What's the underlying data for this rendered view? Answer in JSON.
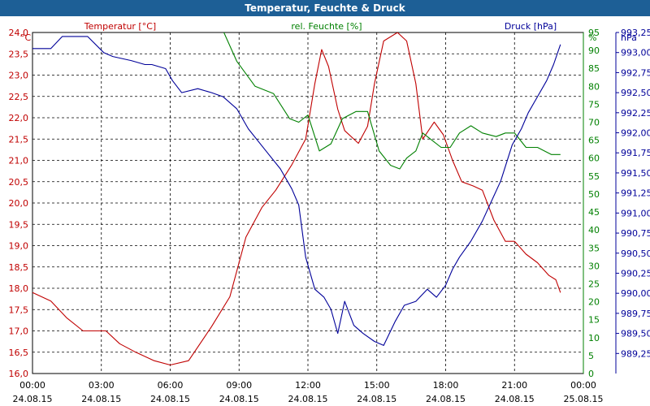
{
  "title": "Temperatur, Feuchte & Druck",
  "chart_data": {
    "type": "line",
    "x": [
      "00:00",
      "03:00",
      "06:00",
      "09:00",
      "12:00",
      "15:00",
      "18:00",
      "21:00",
      "00:00"
    ],
    "x_dates": [
      "24.08.15",
      "24.08.15",
      "24.08.15",
      "24.08.15",
      "24.08.15",
      "24.08.15",
      "24.08.15",
      "24.08.15",
      "25.08.15"
    ],
    "grid": true,
    "axes": {
      "temp": {
        "label": "Temperatur [°C]",
        "unit": "°C",
        "min": 16.0,
        "max": 24.0,
        "step": 0.5,
        "color": "#c00000",
        "ticks": [
          "16,0",
          "16,5",
          "17,0",
          "17,5",
          "18,0",
          "18,5",
          "19,0",
          "19,5",
          "20,0",
          "20,5",
          "21,0",
          "21,5",
          "22,0",
          "22,5",
          "23,0",
          "23,5",
          "24,0"
        ]
      },
      "hum": {
        "label": "rel. Feuchte [%]",
        "unit": "%",
        "min": 0,
        "max": 95,
        "step": 5,
        "color": "#008000",
        "ticks": [
          "0",
          "5",
          "10",
          "15",
          "20",
          "25",
          "30",
          "35",
          "40",
          "45",
          "50",
          "55",
          "60",
          "65",
          "70",
          "75",
          "80",
          "85",
          "90",
          "95"
        ]
      },
      "press": {
        "label": "Druck [hPa]",
        "unit": "hPa",
        "min": 989.0,
        "max": 993.25,
        "step": 0.25,
        "color": "#000099",
        "ticks": [
          "989,25",
          "989,50",
          "989,75",
          "990,00",
          "990,25",
          "990,50",
          "990,75",
          "991,00",
          "991,25",
          "991,50",
          "991,75",
          "992,00",
          "992,25",
          "992,50",
          "992,75",
          "993,00",
          "993,25"
        ]
      }
    },
    "series": [
      {
        "name": "Temperatur [°C]",
        "axis": "temp",
        "color": "#c00000",
        "points": [
          [
            0,
            17.9
          ],
          [
            0.8,
            17.7
          ],
          [
            1.5,
            17.3
          ],
          [
            2.2,
            17.0
          ],
          [
            3.2,
            17.0
          ],
          [
            3.8,
            16.7
          ],
          [
            4.5,
            16.5
          ],
          [
            5.3,
            16.3
          ],
          [
            6.0,
            16.2
          ],
          [
            6.8,
            16.3
          ],
          [
            7.8,
            17.1
          ],
          [
            8.6,
            17.8
          ],
          [
            9.3,
            19.2
          ],
          [
            10.0,
            19.9
          ],
          [
            10.6,
            20.3
          ],
          [
            11.3,
            20.9
          ],
          [
            11.9,
            21.5
          ],
          [
            12.3,
            22.8
          ],
          [
            12.6,
            23.6
          ],
          [
            12.9,
            23.2
          ],
          [
            13.3,
            22.2
          ],
          [
            13.6,
            21.7
          ],
          [
            14.2,
            21.4
          ],
          [
            14.6,
            21.8
          ],
          [
            14.9,
            22.8
          ],
          [
            15.3,
            23.8
          ],
          [
            15.9,
            24.0
          ],
          [
            16.3,
            23.8
          ],
          [
            16.7,
            22.8
          ],
          [
            17.0,
            21.5
          ],
          [
            17.5,
            21.9
          ],
          [
            17.9,
            21.6
          ],
          [
            18.3,
            21.0
          ],
          [
            18.7,
            20.5
          ],
          [
            19.2,
            20.4
          ],
          [
            19.6,
            20.3
          ],
          [
            20.1,
            19.6
          ],
          [
            20.6,
            19.1
          ],
          [
            21.0,
            19.1
          ],
          [
            21.5,
            18.8
          ],
          [
            22.0,
            18.6
          ],
          [
            22.5,
            18.3
          ],
          [
            22.8,
            18.2
          ],
          [
            23.0,
            17.9
          ]
        ]
      },
      {
        "name": "rel. Feuchte [%]",
        "axis": "hum",
        "color": "#008000",
        "points": [
          [
            8.2,
            97
          ],
          [
            8.9,
            87
          ],
          [
            9.7,
            80
          ],
          [
            10.5,
            78
          ],
          [
            11.2,
            71
          ],
          [
            11.6,
            70
          ],
          [
            12.0,
            72
          ],
          [
            12.5,
            62
          ],
          [
            13.0,
            64
          ],
          [
            13.5,
            71
          ],
          [
            14.1,
            73
          ],
          [
            14.6,
            73
          ],
          [
            15.1,
            62
          ],
          [
            15.6,
            58
          ],
          [
            16.0,
            57
          ],
          [
            16.3,
            60
          ],
          [
            16.7,
            62
          ],
          [
            17.0,
            67
          ],
          [
            17.4,
            65
          ],
          [
            17.8,
            63
          ],
          [
            18.2,
            63
          ],
          [
            18.6,
            67
          ],
          [
            19.1,
            69
          ],
          [
            19.6,
            67
          ],
          [
            20.2,
            66
          ],
          [
            20.6,
            67
          ],
          [
            21.0,
            67
          ],
          [
            21.5,
            63
          ],
          [
            22.0,
            63
          ],
          [
            22.6,
            61
          ],
          [
            23.0,
            61
          ]
        ]
      },
      {
        "name": "Druck [hPa]",
        "axis": "press",
        "color": "#000099",
        "points": [
          [
            0,
            993.05
          ],
          [
            0.8,
            993.05
          ],
          [
            1.3,
            993.2
          ],
          [
            2.4,
            993.2
          ],
          [
            3.1,
            993.0
          ],
          [
            3.5,
            992.95
          ],
          [
            4.3,
            992.9
          ],
          [
            4.9,
            992.85
          ],
          [
            5.2,
            992.85
          ],
          [
            5.8,
            992.8
          ],
          [
            6.1,
            992.65
          ],
          [
            6.5,
            992.5
          ],
          [
            7.2,
            992.55
          ],
          [
            7.8,
            992.5
          ],
          [
            8.3,
            992.45
          ],
          [
            8.9,
            992.3
          ],
          [
            9.4,
            992.05
          ],
          [
            10.1,
            991.8
          ],
          [
            10.8,
            991.55
          ],
          [
            11.3,
            991.3
          ],
          [
            11.6,
            991.1
          ],
          [
            11.9,
            990.45
          ],
          [
            12.3,
            990.05
          ],
          [
            12.7,
            989.95
          ],
          [
            13.0,
            989.8
          ],
          [
            13.3,
            989.5
          ],
          [
            13.6,
            989.9
          ],
          [
            14.0,
            989.6
          ],
          [
            14.4,
            989.5
          ],
          [
            14.9,
            989.4
          ],
          [
            15.3,
            989.35
          ],
          [
            15.8,
            989.65
          ],
          [
            16.2,
            989.85
          ],
          [
            16.7,
            989.9
          ],
          [
            17.2,
            990.05
          ],
          [
            17.6,
            989.95
          ],
          [
            18.0,
            990.1
          ],
          [
            18.3,
            990.3
          ],
          [
            18.6,
            990.45
          ],
          [
            19.1,
            990.65
          ],
          [
            19.6,
            990.9
          ],
          [
            20.0,
            991.15
          ],
          [
            20.4,
            991.4
          ],
          [
            20.9,
            991.85
          ],
          [
            21.3,
            992.05
          ],
          [
            21.6,
            992.25
          ],
          [
            22.0,
            992.45
          ],
          [
            22.4,
            992.65
          ],
          [
            22.7,
            992.85
          ],
          [
            23.0,
            993.1
          ]
        ]
      }
    ]
  }
}
